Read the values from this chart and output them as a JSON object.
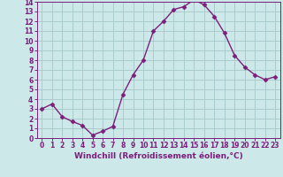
{
  "x": [
    0,
    1,
    2,
    3,
    4,
    5,
    6,
    7,
    8,
    9,
    10,
    11,
    12,
    13,
    14,
    15,
    16,
    17,
    18,
    19,
    20,
    21,
    22,
    23
  ],
  "y": [
    3.0,
    3.5,
    2.2,
    1.7,
    1.3,
    0.3,
    0.7,
    1.2,
    4.5,
    6.5,
    8.0,
    11.0,
    12.0,
    13.2,
    13.5,
    14.2,
    13.7,
    12.5,
    10.8,
    8.5,
    7.3,
    6.5,
    6.0,
    6.3
  ],
  "line_color": "#7B1F7B",
  "marker": "D",
  "marker_size": 2.5,
  "bg_color": "#cce8e8",
  "grid_color": "#aacccc",
  "xlabel": "Windchill (Refroidissement éolien,°C)",
  "ylim": [
    0,
    14
  ],
  "xlim": [
    -0.5,
    23.5
  ],
  "yticks": [
    0,
    1,
    2,
    3,
    4,
    5,
    6,
    7,
    8,
    9,
    10,
    11,
    12,
    13,
    14
  ],
  "xticks": [
    0,
    1,
    2,
    3,
    4,
    5,
    6,
    7,
    8,
    9,
    10,
    11,
    12,
    13,
    14,
    15,
    16,
    17,
    18,
    19,
    20,
    21,
    22,
    23
  ],
  "tick_fontsize": 5.5,
  "label_fontsize": 6.5,
  "spine_color": "#7B1F7B",
  "linewidth": 1.0
}
